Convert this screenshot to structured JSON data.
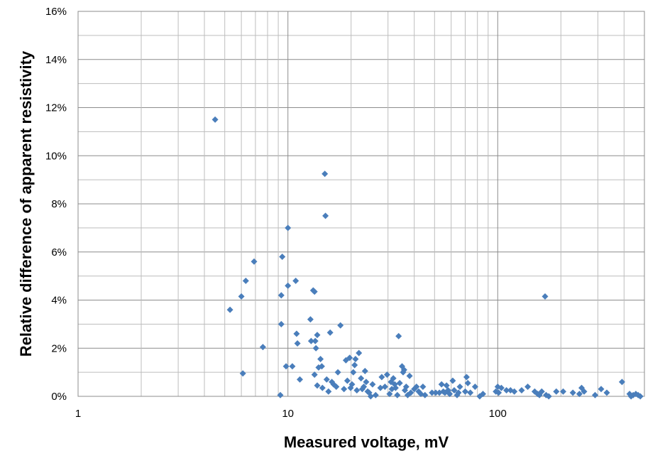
{
  "chart_data": {
    "type": "scatter",
    "xlabel": "Measured voltage, mV",
    "ylabel": "Relative difference of apparent resistivity",
    "x_scale": "log",
    "xlim": [
      1,
      500
    ],
    "ylim": [
      0,
      16
    ],
    "y_unit": "%",
    "x_ticks": [
      {
        "value": 1,
        "label": "1"
      },
      {
        "value": 10,
        "label": "10"
      },
      {
        "value": 100,
        "label": "100"
      }
    ],
    "y_ticks": [
      {
        "value": 0,
        "label": "0%"
      },
      {
        "value": 2,
        "label": "2%"
      },
      {
        "value": 4,
        "label": "4%"
      },
      {
        "value": 6,
        "label": "6%"
      },
      {
        "value": 8,
        "label": "8%"
      },
      {
        "value": 10,
        "label": "10%"
      },
      {
        "value": 12,
        "label": "12%"
      },
      {
        "value": 14,
        "label": "14%"
      },
      {
        "value": 16,
        "label": "16%"
      }
    ],
    "grid": true,
    "legend": "none",
    "marker": "diamond",
    "marker_color": "#4a7ebb",
    "series": [
      {
        "points": [
          [
            4.5,
            11.5
          ],
          [
            5.3,
            3.6
          ],
          [
            6.0,
            4.15
          ],
          [
            6.1,
            0.95
          ],
          [
            6.3,
            4.8
          ],
          [
            6.9,
            5.6
          ],
          [
            7.6,
            2.05
          ],
          [
            9.2,
            0.05
          ],
          [
            9.3,
            3.0
          ],
          [
            9.3,
            4.2
          ],
          [
            9.4,
            5.8
          ],
          [
            9.8,
            1.25
          ],
          [
            10.0,
            7.0
          ],
          [
            10.0,
            4.6
          ],
          [
            10.5,
            1.25
          ],
          [
            10.9,
            4.8
          ],
          [
            11.0,
            2.6
          ],
          [
            11.1,
            2.2
          ],
          [
            11.4,
            0.7
          ],
          [
            12.8,
            3.2
          ],
          [
            12.9,
            2.3
          ],
          [
            13.2,
            4.4
          ],
          [
            13.4,
            4.35
          ],
          [
            13.4,
            0.9
          ],
          [
            13.5,
            2.3
          ],
          [
            13.6,
            2.0
          ],
          [
            13.8,
            2.55
          ],
          [
            13.8,
            0.45
          ],
          [
            14.0,
            1.2
          ],
          [
            14.3,
            1.55
          ],
          [
            14.5,
            1.25
          ],
          [
            14.6,
            0.35
          ],
          [
            15.0,
            9.25
          ],
          [
            15.1,
            7.5
          ],
          [
            15.3,
            0.7
          ],
          [
            15.6,
            0.2
          ],
          [
            15.9,
            2.65
          ],
          [
            16.2,
            0.6
          ],
          [
            16.5,
            0.5
          ],
          [
            17.0,
            0.4
          ],
          [
            17.3,
            1.0
          ],
          [
            17.8,
            2.95
          ],
          [
            18.5,
            0.3
          ],
          [
            18.9,
            1.5
          ],
          [
            19.2,
            0.65
          ],
          [
            19.7,
            1.6
          ],
          [
            19.9,
            0.35
          ],
          [
            20.2,
            0.5
          ],
          [
            20.5,
            1.0
          ],
          [
            20.8,
            1.3
          ],
          [
            21.0,
            1.55
          ],
          [
            21.3,
            0.25
          ],
          [
            21.8,
            1.8
          ],
          [
            22.3,
            0.75
          ],
          [
            22.6,
            0.3
          ],
          [
            23.0,
            0.4
          ],
          [
            23.3,
            1.05
          ],
          [
            23.6,
            0.6
          ],
          [
            24.0,
            0.2
          ],
          [
            24.4,
            0.15
          ],
          [
            24.8,
            0.0
          ],
          [
            25.3,
            0.5
          ],
          [
            26.2,
            0.05
          ],
          [
            27.6,
            0.35
          ],
          [
            28.0,
            0.8
          ],
          [
            29.0,
            0.4
          ],
          [
            29.7,
            0.9
          ],
          [
            30.5,
            0.1
          ],
          [
            31.0,
            0.6
          ],
          [
            31.3,
            0.3
          ],
          [
            31.8,
            0.75
          ],
          [
            32.3,
            0.5
          ],
          [
            32.6,
            0.35
          ],
          [
            33.2,
            0.05
          ],
          [
            33.7,
            2.5
          ],
          [
            34.1,
            0.55
          ],
          [
            35.0,
            1.25
          ],
          [
            35.4,
            1.0
          ],
          [
            35.8,
            1.1
          ],
          [
            36.1,
            0.25
          ],
          [
            36.6,
            0.4
          ],
          [
            37.2,
            0.05
          ],
          [
            38.0,
            0.85
          ],
          [
            38.5,
            0.15
          ],
          [
            40.0,
            0.3
          ],
          [
            41.0,
            0.4
          ],
          [
            42.0,
            0.2
          ],
          [
            43.0,
            0.1
          ],
          [
            44.0,
            0.4
          ],
          [
            45.0,
            0.05
          ],
          [
            48.6,
            0.15
          ],
          [
            50.6,
            0.15
          ],
          [
            52.7,
            0.15
          ],
          [
            54.0,
            0.5
          ],
          [
            55.0,
            0.2
          ],
          [
            56.0,
            0.15
          ],
          [
            57.0,
            0.45
          ],
          [
            58.0,
            0.25
          ],
          [
            59.0,
            0.1
          ],
          [
            61.0,
            0.65
          ],
          [
            62.0,
            0.25
          ],
          [
            64.0,
            0.05
          ],
          [
            65.0,
            0.15
          ],
          [
            66.0,
            0.4
          ],
          [
            70.0,
            0.2
          ],
          [
            71.0,
            0.8
          ],
          [
            72.0,
            0.55
          ],
          [
            74.0,
            0.15
          ],
          [
            78.0,
            0.4
          ],
          [
            82.0,
            0.0
          ],
          [
            85.0,
            0.1
          ],
          [
            98.0,
            0.2
          ],
          [
            100.0,
            0.4
          ],
          [
            101.0,
            0.15
          ],
          [
            104.0,
            0.35
          ],
          [
            110.0,
            0.25
          ],
          [
            115.0,
            0.25
          ],
          [
            120.0,
            0.2
          ],
          [
            130.0,
            0.25
          ],
          [
            139.0,
            0.4
          ],
          [
            150.0,
            0.2
          ],
          [
            155.0,
            0.1
          ],
          [
            158.0,
            0.05
          ],
          [
            162.0,
            0.2
          ],
          [
            168.0,
            4.15
          ],
          [
            170.0,
            0.05
          ],
          [
            175.0,
            0.0
          ],
          [
            190.0,
            0.2
          ],
          [
            205.0,
            0.2
          ],
          [
            228.0,
            0.15
          ],
          [
            245.0,
            0.1
          ],
          [
            251.0,
            0.35
          ],
          [
            258.0,
            0.2
          ],
          [
            291.0,
            0.05
          ],
          [
            311.0,
            0.3
          ],
          [
            331.0,
            0.15
          ],
          [
            391.0,
            0.6
          ],
          [
            425.0,
            0.1
          ],
          [
            432.0,
            0.0
          ],
          [
            442.0,
            0.05
          ],
          [
            455.0,
            0.1
          ],
          [
            467.0,
            0.05
          ],
          [
            478.0,
            0.0
          ]
        ]
      }
    ]
  }
}
